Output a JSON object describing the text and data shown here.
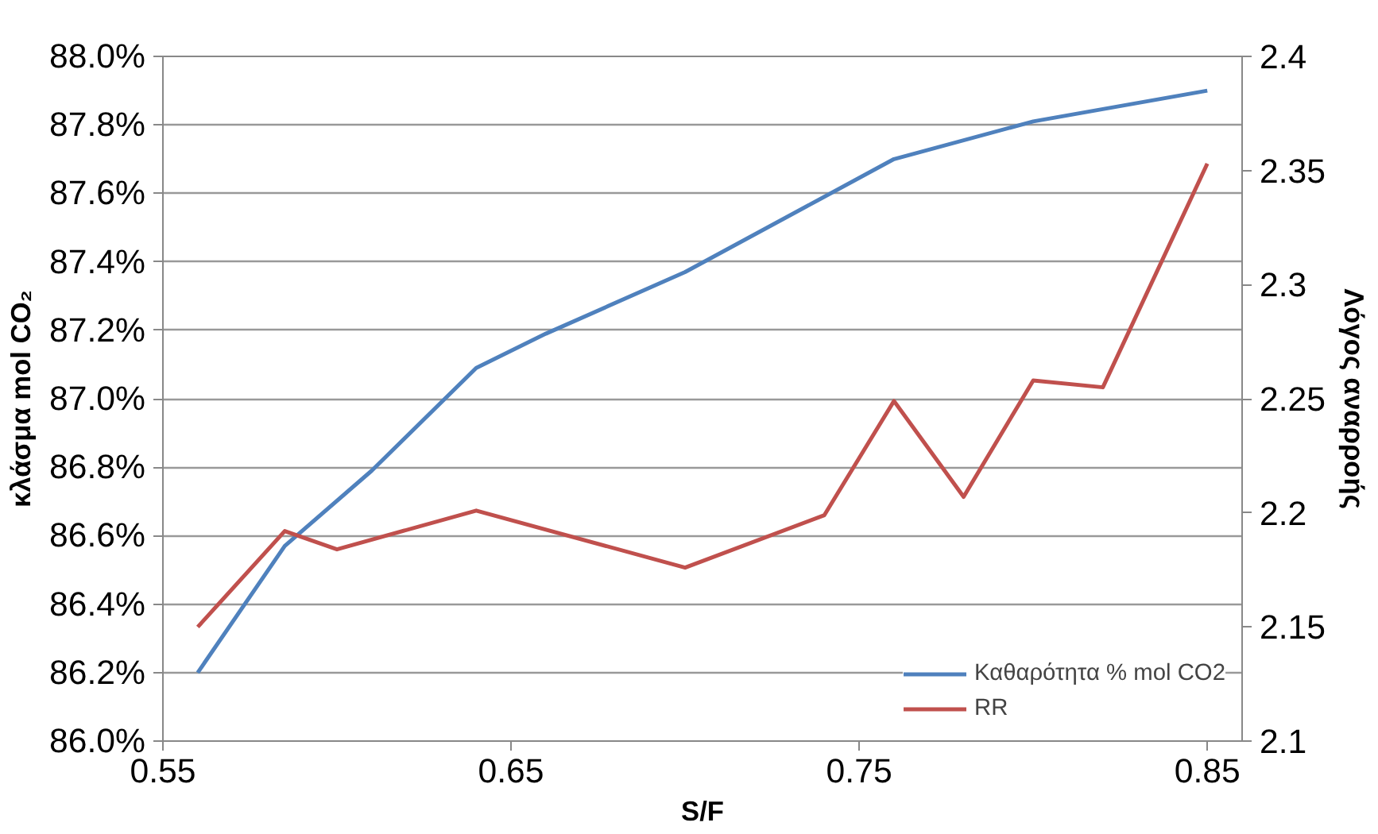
{
  "chart_data": {
    "type": "line",
    "xlabel": "S/F",
    "ylabel": "κλάσμα mol CO₂",
    "y2label": "Λόγος αναρροής",
    "xlim": [
      0.55,
      0.86
    ],
    "xticks": [
      0.55,
      0.65,
      0.75,
      0.85
    ],
    "ylim": [
      86.0,
      88.0
    ],
    "yticks": [
      {
        "value": 86.0,
        "label": "86.0%"
      },
      {
        "value": 86.2,
        "label": "86.2%"
      },
      {
        "value": 86.4,
        "label": "86.4%"
      },
      {
        "value": 86.6,
        "label": "86.6%"
      },
      {
        "value": 86.8,
        "label": "86.8%"
      },
      {
        "value": 87.0,
        "label": "87.0%"
      },
      {
        "value": 87.2,
        "label": "87.2%"
      },
      {
        "value": 87.4,
        "label": "87.4%"
      },
      {
        "value": 87.6,
        "label": "87.6%"
      },
      {
        "value": 87.8,
        "label": "87.8%"
      },
      {
        "value": 88.0,
        "label": "88.0%"
      }
    ],
    "y2lim": [
      2.1,
      2.4
    ],
    "y2ticks": [
      2.1,
      2.15,
      2.2,
      2.25,
      2.3,
      2.35,
      2.4
    ],
    "grid": "y",
    "legend": "bottom right",
    "line_style": "solid",
    "series": [
      {
        "name": "Καθαρότητα % mol CO2",
        "color": "#4f81bd",
        "x": [
          0.56,
          0.585,
          0.61,
          0.64,
          0.66,
          0.7,
          0.76,
          0.8,
          0.85
        ],
        "values": [
          86.2,
          86.57,
          86.79,
          87.09,
          87.19,
          87.37,
          87.7,
          87.81,
          87.9
        ]
      },
      {
        "name": "RR",
        "color": "#c0504d",
        "axis": "y2",
        "x": [
          0.56,
          0.585,
          0.6,
          0.64,
          0.7,
          0.74,
          0.76,
          0.78,
          0.8,
          0.82,
          0.85
        ],
        "values": [
          2.15,
          2.192,
          2.184,
          2.201,
          2.176,
          2.199,
          2.249,
          2.207,
          2.258,
          2.255,
          2.353
        ]
      }
    ]
  }
}
